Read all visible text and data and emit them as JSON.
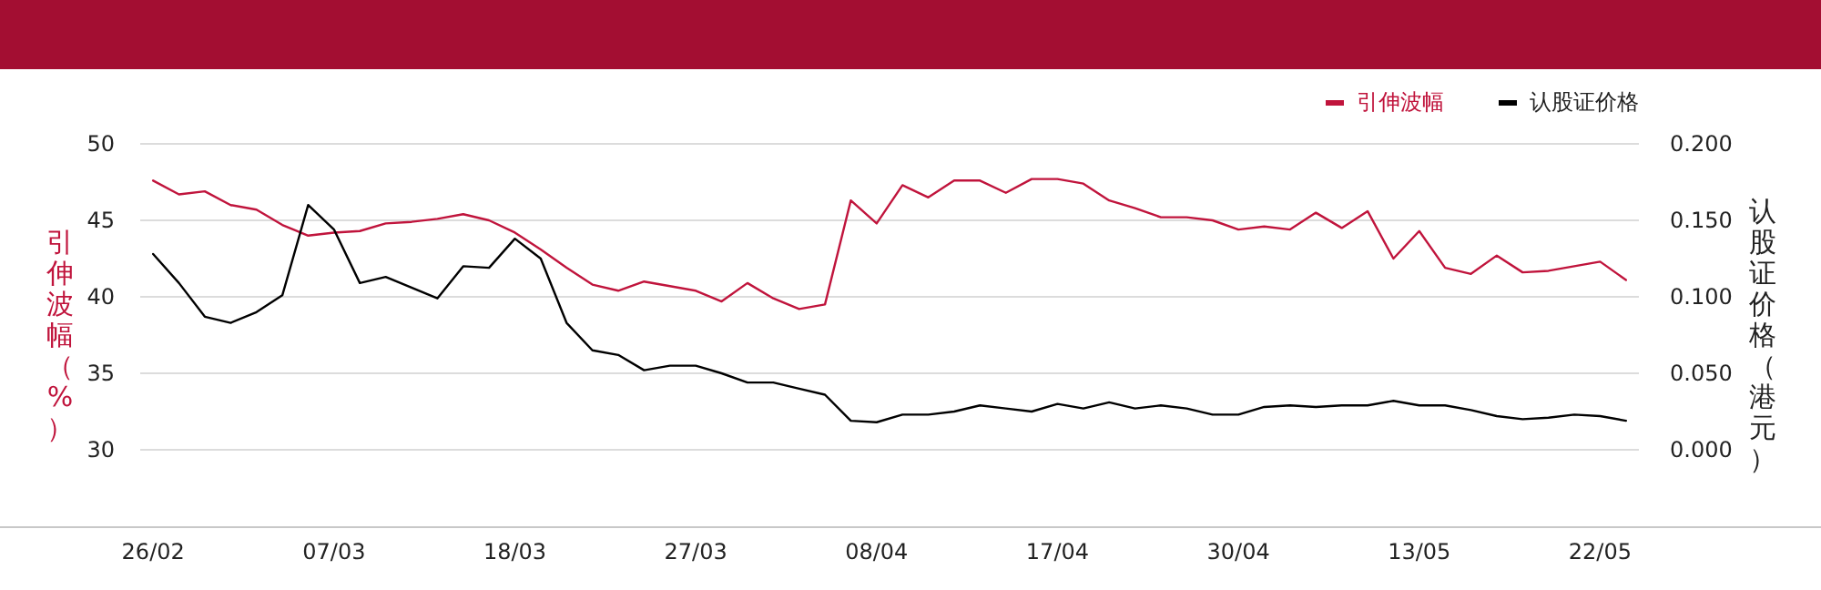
{
  "chart_data": {
    "type": "line",
    "categories": [
      "26/02",
      null,
      null,
      null,
      null,
      null,
      null,
      "07/03",
      null,
      null,
      null,
      null,
      null,
      null,
      "18/03",
      null,
      null,
      null,
      null,
      null,
      null,
      "27/03",
      null,
      null,
      null,
      null,
      null,
      null,
      "08/04",
      null,
      null,
      null,
      null,
      null,
      null,
      "17/04",
      null,
      null,
      null,
      null,
      null,
      null,
      "30/04",
      null,
      null,
      null,
      null,
      null,
      null,
      "13/05",
      null,
      null,
      null,
      null,
      null,
      null,
      "22/05",
      null
    ],
    "ylabel": "引伸波幅（%）",
    "y2label": "认股证价格（港元）",
    "ylim": [
      25,
      50
    ],
    "yticks": [
      30,
      35,
      40,
      45,
      50
    ],
    "y2lim": [
      -0.05,
      0.2
    ],
    "y2ticks": [
      {
        "value": 0,
        "label": "0.000"
      },
      {
        "value": 0.05,
        "label": "0.050"
      },
      {
        "value": 0.1,
        "label": "0.100"
      },
      {
        "value": 0.15,
        "label": "0.150"
      },
      {
        "value": 0.2,
        "label": "0.200"
      }
    ],
    "grid": "y",
    "legend": "top right",
    "series": [
      {
        "name": "引伸波幅",
        "color": "#c0143c",
        "values": [
          47.6,
          46.7,
          46.9,
          46.0,
          45.7,
          44.7,
          44.0,
          44.2,
          44.3,
          44.8,
          44.9,
          45.1,
          45.4,
          45.0,
          44.2,
          43.1,
          41.9,
          40.8,
          40.4,
          41.0,
          40.7,
          40.4,
          39.7,
          40.9,
          39.9,
          39.2,
          39.5,
          46.3,
          44.8,
          47.3,
          46.5,
          47.6,
          47.6,
          46.8,
          47.7,
          47.7,
          47.4,
          46.3,
          45.8,
          45.2,
          45.2,
          45.0,
          44.4,
          44.6,
          44.4,
          45.5,
          44.5,
          45.6,
          42.5,
          44.3,
          41.9,
          41.5,
          42.7,
          41.6,
          41.7,
          42.0,
          42.3,
          41.1
        ]
      },
      {
        "name": "认股证价格",
        "color": "#000000",
        "axis": "y2",
        "values": [
          0.128,
          0.109,
          0.087,
          0.083,
          0.09,
          0.101,
          0.16,
          0.144,
          0.109,
          0.113,
          0.106,
          0.099,
          0.12,
          0.119,
          0.138,
          0.125,
          0.083,
          0.065,
          0.062,
          0.052,
          0.055,
          0.055,
          0.05,
          0.044,
          0.044,
          0.04,
          0.036,
          0.019,
          0.018,
          0.023,
          0.023,
          0.025,
          0.029,
          0.027,
          0.025,
          0.03,
          0.027,
          0.031,
          0.027,
          0.029,
          0.027,
          0.023,
          0.023,
          0.028,
          0.029,
          0.028,
          0.029,
          0.029,
          0.032,
          0.029,
          0.029,
          0.026,
          0.022,
          0.02,
          0.021,
          0.023,
          0.022,
          0.019
        ]
      }
    ]
  }
}
